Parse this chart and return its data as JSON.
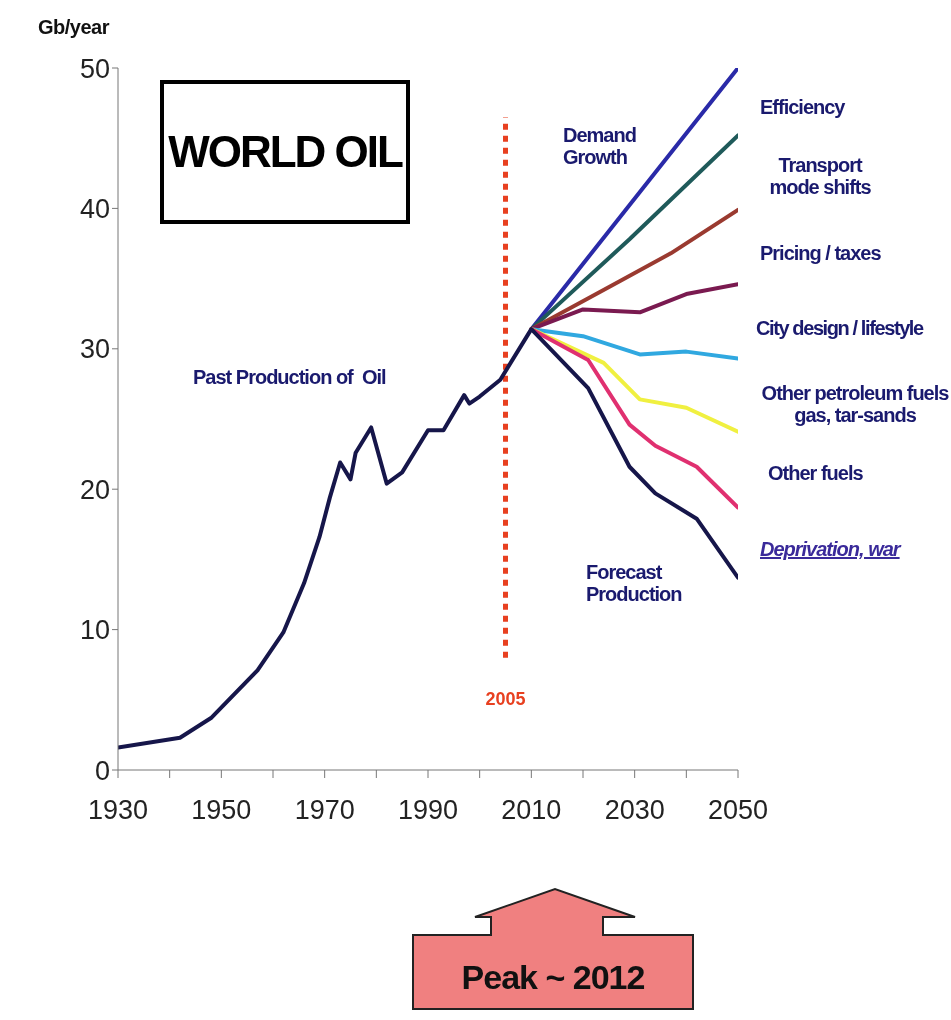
{
  "chart_data": {
    "type": "line",
    "title": "WORLD OIL",
    "ylabel": "Gb/year",
    "xlim": [
      1930,
      2050
    ],
    "xticks": [
      1930,
      {
        "value": 1940,
        "label": null
      },
      1950,
      {
        "value": 1960,
        "label": null
      },
      1970,
      {
        "value": 1980,
        "label": null
      },
      1990,
      {
        "value": 2000,
        "label": null
      },
      2010,
      {
        "value": 2020,
        "label": null
      },
      2030,
      {
        "value": 2040,
        "label": null
      },
      2050
    ],
    "ylim": [
      0,
      50
    ],
    "yticks": [
      0,
      10,
      20,
      30,
      40,
      50
    ],
    "grid": false,
    "line_style": "solid",
    "series": [
      {
        "color": "#2a2aa8",
        "x": [
          2010,
          2050
        ],
        "values": [
          31.4,
          50
        ]
      },
      {
        "color": "#1f5a5a",
        "x": [
          2010,
          2029,
          2050
        ],
        "values": [
          31.4,
          37.8,
          45.2
        ]
      },
      {
        "color": "#9a3a30",
        "x": [
          2010,
          2027,
          2037,
          2050
        ],
        "values": [
          31.4,
          34.8,
          36.8,
          39.9
        ]
      },
      {
        "color": "#7a1a50",
        "x": [
          2010,
          2020,
          2031,
          2040,
          2050
        ],
        "values": [
          31.4,
          32.8,
          32.6,
          33.9,
          34.6
        ]
      },
      {
        "color": "#30a8e0",
        "x": [
          2010,
          2020,
          2031,
          2040,
          2050
        ],
        "values": [
          31.4,
          30.9,
          29.6,
          29.8,
          29.3
        ]
      },
      {
        "color": "#f0f040",
        "x": [
          2010,
          2024,
          2031,
          2040,
          2050
        ],
        "values": [
          31.4,
          29.0,
          26.4,
          25.8,
          24.1
        ]
      },
      {
        "color": "#e03070",
        "x": [
          2010,
          2021,
          2029,
          2034,
          2042,
          2050
        ],
        "values": [
          31.4,
          29.2,
          24.6,
          23.1,
          21.6,
          18.7
        ]
      },
      {
        "color": "#16164a",
        "x": [
          1930,
          1942,
          1948,
          1957,
          1962,
          1966,
          1969,
          1971,
          1973,
          1975,
          1976,
          1979,
          1982,
          1985,
          1990,
          1993,
          1997,
          1998,
          2000,
          2004,
          2010,
          2021,
          2029,
          2034,
          2042,
          2050
        ],
        "values": [
          1.6,
          2.3,
          3.7,
          7.1,
          9.8,
          13.3,
          16.6,
          19.4,
          21.9,
          20.7,
          22.6,
          24.4,
          20.4,
          21.2,
          24.2,
          24.2,
          26.7,
          26.1,
          26.6,
          27.8,
          31.4,
          27.2,
          21.6,
          19.7,
          17.9,
          13.7
        ]
      }
    ],
    "ref_lines": [
      {
        "axis": "x",
        "value": 2005,
        "label": "2005",
        "color": "#e84020",
        "line_style": "dotted"
      }
    ],
    "annotations": [
      "Past Production of  Oil",
      "Demand Growth",
      "Forecast Production",
      "Efficiency",
      "Transport mode shifts",
      "Pricing / taxes",
      "City design / lifestyle",
      "Other petroleum fuels gas, tar-sands",
      "Other fuels",
      "Deprivation, war",
      "Peak ~ 2012"
    ]
  }
}
